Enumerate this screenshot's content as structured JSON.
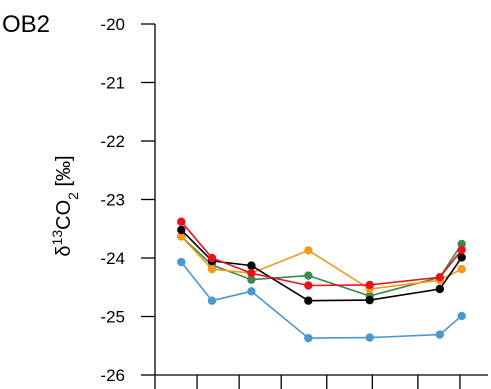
{
  "panel_label": "OB2",
  "chart_data": {
    "type": "line",
    "ylabel": "δ13CO2 [‰]",
    "ylabel_parts": {
      "delta": "δ",
      "mass": "13",
      "species": "CO",
      "sub": "2",
      "unit": " [‰]"
    },
    "ylim": [
      -26,
      -20
    ],
    "yticks": [
      -20,
      -21,
      -22,
      -23,
      -24,
      -25,
      -26
    ],
    "ytick_labels": [
      "-20",
      "-21",
      "-22",
      "-23",
      "-24",
      "-25",
      "-26"
    ],
    "x": [
      1,
      2,
      3,
      4,
      5,
      6,
      7
    ],
    "xlim": [
      0.4,
      8.0
    ],
    "xticks": [
      0.4,
      1.36,
      2.32,
      3.28,
      4.32,
      5.36,
      6.4,
      7.36
    ],
    "grid": false,
    "series": [
      {
        "color": "#4a97d1",
        "values": [
          -24.07,
          -24.73,
          -24.57,
          -25.37,
          -25.36,
          -25.31,
          -24.99
        ],
        "x": [
          1,
          1.7,
          2.6,
          3.9,
          5.3,
          6.9,
          7.4
        ]
      },
      {
        "color": "#3a8a4e",
        "values": [
          -23.63,
          -24.12,
          -24.37,
          -24.3,
          -24.65,
          -24.33,
          -23.76
        ],
        "x": [
          1,
          1.7,
          2.6,
          3.9,
          5.3,
          6.9,
          7.4
        ]
      },
      {
        "color": "#f39a1c",
        "values": [
          -23.63,
          -24.19,
          -24.26,
          -23.87,
          -24.53,
          -24.38,
          -24.19
        ],
        "x": [
          1,
          1.7,
          2.6,
          3.9,
          5.3,
          6.9,
          7.4
        ]
      },
      {
        "color": "#000000",
        "values": [
          -23.52,
          -24.05,
          -24.13,
          -24.73,
          -24.72,
          -24.53,
          -23.99
        ],
        "x": [
          1,
          1.7,
          2.6,
          3.9,
          5.3,
          6.9,
          7.4
        ]
      },
      {
        "color": "#e8141c",
        "values": [
          -23.38,
          -24.0,
          -24.26,
          -24.47,
          -24.46,
          -24.33,
          -23.86
        ],
        "x": [
          1,
          1.7,
          2.6,
          3.9,
          5.3,
          6.9,
          7.4
        ]
      }
    ]
  }
}
